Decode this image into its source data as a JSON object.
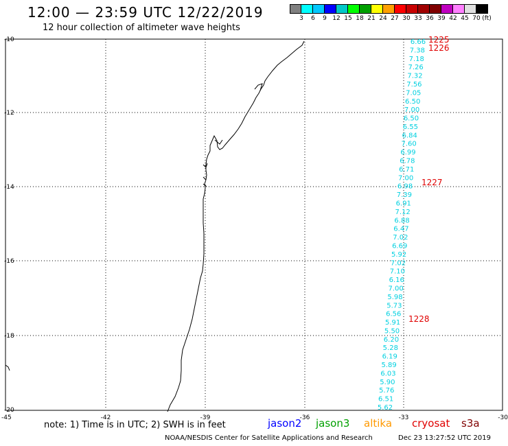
{
  "header": {
    "title": "12:00 — 23:59 UTC 12/22/2019",
    "subtitle": "12 hour collection of altimeter wave heights"
  },
  "color_scale": {
    "colors": [
      "#808080",
      "#00ffff",
      "#00c8ff",
      "#0000ff",
      "#00c8c8",
      "#00ff00",
      "#00a000",
      "#ffff00",
      "#ffa000",
      "#ff0000",
      "#c80000",
      "#a00000",
      "#800000",
      "#c000c0",
      "#ff80ff",
      "#e0e0e0",
      "#000000"
    ],
    "labels": [
      "3",
      "6",
      "9",
      "12",
      "15",
      "18",
      "21",
      "24",
      "27",
      "30",
      "33",
      "36",
      "39",
      "42",
      "45",
      "70",
      "(ft)"
    ]
  },
  "axes": {
    "lat_labels": [
      "-10",
      "-12",
      "-14",
      "-16",
      "-18",
      "-20"
    ],
    "lon_labels": [
      "-45",
      "-42",
      "-39",
      "-36",
      "-33",
      "-30"
    ]
  },
  "track": {
    "color": "#00d0e0",
    "values": [
      "6.66",
      "7.38",
      "7.18",
      "7.26",
      "7.32",
      "7.56",
      "7.05",
      "6.50",
      "7.00",
      "6.50",
      "6.55",
      "6.84",
      "7.60",
      "6.99",
      "6.78",
      "6.71",
      "7.00",
      "6.98",
      "7.39",
      "6.91",
      "7.12",
      "6.88",
      "6.47",
      "7.02",
      "6.69",
      "5.92",
      "7.02",
      "7.10",
      "6.16",
      "7.00",
      "5.98",
      "5.73",
      "6.56",
      "5.91",
      "5.50",
      "6.20",
      "5.28",
      "6.19",
      "5.89",
      "6.03",
      "5.90",
      "5.76",
      "6.51",
      "5.62"
    ]
  },
  "time_labels": [
    "1225",
    "1226",
    "1227",
    "1228"
  ],
  "footer": {
    "note": "note: 1) Time is in UTC; 2) SWH is in feet",
    "satellites": [
      {
        "name": "jason2",
        "color": "#0000ff"
      },
      {
        "name": "jason3",
        "color": "#00a000"
      },
      {
        "name": "altika",
        "color": "#ff9900"
      },
      {
        "name": "cryosat",
        "color": "#e00000"
      },
      {
        "name": "s3a",
        "color": "#800000"
      }
    ],
    "credit": "NOAA/NESDIS Center for Satellite Applications and Research",
    "timestamp": "Dec 23 13:27:52 UTC 2019"
  }
}
